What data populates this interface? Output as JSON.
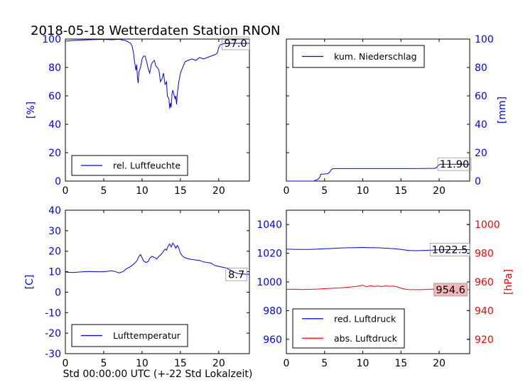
{
  "figure": {
    "title": "2018-05-18 Wetterdaten Station RNON",
    "xlabel": "Std 00:00:00 UTC (+-22 Std Lokalzeit)"
  },
  "colors": {
    "blue": "#0000ff",
    "red": "#ff0000",
    "black": "#000000"
  },
  "chart_data": [
    {
      "id": "humidity",
      "type": "line",
      "xlim": [
        0,
        24
      ],
      "ylim": [
        0,
        100
      ],
      "xticks": [
        0,
        5,
        10,
        15,
        20
      ],
      "yticks": [
        0,
        20,
        40,
        60,
        80,
        100
      ],
      "ylabel": "[%]",
      "ylabel_color": "#0000ff",
      "tick_color": "#0000ff",
      "legend_position": "lower-center",
      "series": [
        {
          "name": "rel. Luftfeuchte",
          "color": "#0000ff",
          "points": [
            [
              0,
              98.5
            ],
            [
              1,
              99
            ],
            [
              2,
              99.3
            ],
            [
              3,
              99.5
            ],
            [
              4,
              99.6
            ],
            [
              5,
              99.8
            ],
            [
              6,
              99.5
            ],
            [
              7,
              99.8
            ],
            [
              7.8,
              99
            ],
            [
              8.2,
              98
            ],
            [
              8.5,
              97
            ],
            [
              8.7,
              95
            ],
            [
              8.9,
              90
            ],
            [
              9.0,
              85
            ],
            [
              9.2,
              78
            ],
            [
              9.3,
              82
            ],
            [
              9.4,
              73
            ],
            [
              9.5,
              69
            ],
            [
              9.6,
              77
            ],
            [
              9.8,
              80
            ],
            [
              10.0,
              86
            ],
            [
              10.2,
              88
            ],
            [
              10.4,
              88
            ],
            [
              10.6,
              84
            ],
            [
              10.8,
              79
            ],
            [
              11.0,
              76
            ],
            [
              11.2,
              82
            ],
            [
              11.4,
              84
            ],
            [
              11.6,
              85
            ],
            [
              11.8,
              81
            ],
            [
              12.0,
              80
            ],
            [
              12.2,
              78
            ],
            [
              12.4,
              70
            ],
            [
              12.6,
              72
            ],
            [
              12.8,
              76
            ],
            [
              13.0,
              68
            ],
            [
              13.2,
              70
            ],
            [
              13.3,
              60
            ],
            [
              13.5,
              58
            ],
            [
              13.6,
              51
            ],
            [
              13.7,
              55
            ],
            [
              13.8,
              52
            ],
            [
              13.9,
              61
            ],
            [
              14.0,
              64
            ],
            [
              14.1,
              62
            ],
            [
              14.3,
              58
            ],
            [
              14.4,
              60
            ],
            [
              14.5,
              54
            ],
            [
              14.6,
              62
            ],
            [
              14.8,
              70
            ],
            [
              15.0,
              76
            ],
            [
              15.3,
              80
            ],
            [
              15.6,
              84
            ],
            [
              16.0,
              85
            ],
            [
              16.5,
              86
            ],
            [
              17,
              85
            ],
            [
              17.5,
              87
            ],
            [
              18,
              86
            ],
            [
              18.5,
              87
            ],
            [
              19,
              88
            ],
            [
              19.5,
              89
            ],
            [
              19.8,
              90
            ],
            [
              20.0,
              94
            ],
            [
              20.2,
              96
            ],
            [
              20.5,
              96.5
            ],
            [
              21,
              97
            ],
            [
              22,
              97
            ],
            [
              23,
              97
            ],
            [
              24,
              97
            ]
          ]
        }
      ],
      "annotations": [
        {
          "text": "97.0",
          "x": 22.2,
          "y": 97
        }
      ]
    },
    {
      "id": "precipitation",
      "type": "line",
      "xlim": [
        0,
        24
      ],
      "ylim": [
        0,
        100
      ],
      "xticks": [
        0,
        5,
        10,
        15,
        20
      ],
      "yticks": [
        0,
        20,
        40,
        60,
        80,
        100
      ],
      "y_axis_side": "right",
      "ylabel": "[mm]",
      "ylabel_color": "#0000ff",
      "tick_color": "#0000ff",
      "legend_position": "upper-left",
      "series": [
        {
          "name": "kum. Niederschlag",
          "color": "#0000ff",
          "points": [
            [
              0,
              0
            ],
            [
              3.6,
              0
            ],
            [
              3.7,
              0.3
            ],
            [
              3.8,
              0.6
            ],
            [
              4.0,
              1.0
            ],
            [
              4.2,
              1.5
            ],
            [
              4.4,
              3
            ],
            [
              4.5,
              4.8
            ],
            [
              5.0,
              5
            ],
            [
              5.4,
              5.2
            ],
            [
              5.6,
              6
            ],
            [
              5.8,
              7.5
            ],
            [
              6.0,
              8.6
            ],
            [
              6.3,
              8.8
            ],
            [
              8,
              8.8
            ],
            [
              10,
              8.8
            ],
            [
              12,
              8.8
            ],
            [
              14,
              8.8
            ],
            [
              16,
              8.8
            ],
            [
              18,
              8.9
            ],
            [
              19.4,
              9.0
            ],
            [
              19.6,
              9.3
            ],
            [
              19.8,
              10.6
            ],
            [
              20.0,
              11.5
            ],
            [
              20.3,
              11.9
            ],
            [
              24,
              11.9
            ]
          ]
        }
      ],
      "annotations": [
        {
          "text": "11.90",
          "x": 22.0,
          "y": 11.9
        }
      ]
    },
    {
      "id": "temperature",
      "type": "line",
      "xlim": [
        0,
        24
      ],
      "ylim": [
        -30,
        40
      ],
      "xticks": [
        0,
        5,
        10,
        15,
        20
      ],
      "yticks": [
        -30,
        -20,
        -10,
        0,
        10,
        20,
        30,
        40
      ],
      "ylabel": "[C]",
      "ylabel_color": "#0000ff",
      "tick_color": "#0000ff",
      "legend_position": "lower-center",
      "series": [
        {
          "name": "Lufttemperatur",
          "color": "#0000ff",
          "points": [
            [
              0,
              9.8
            ],
            [
              1,
              9.6
            ],
            [
              2,
              9.9
            ],
            [
              3,
              10.1
            ],
            [
              4,
              10.0
            ],
            [
              5,
              10.0
            ],
            [
              6,
              10.4
            ],
            [
              6.5,
              10.1
            ],
            [
              7,
              9.4
            ],
            [
              7.5,
              10.0
            ],
            [
              8.0,
              11.5
            ],
            [
              8.5,
              12.5
            ],
            [
              9.0,
              14.0
            ],
            [
              9.3,
              15.2
            ],
            [
              9.6,
              17.5
            ],
            [
              9.8,
              18.3
            ],
            [
              10.0,
              16.8
            ],
            [
              10.2,
              15.2
            ],
            [
              10.5,
              14.5
            ],
            [
              10.8,
              15.0
            ],
            [
              11.0,
              16.5
            ],
            [
              11.3,
              17.5
            ],
            [
              11.6,
              17.0
            ],
            [
              11.9,
              16.2
            ],
            [
              12.2,
              17.5
            ],
            [
              12.5,
              18.5
            ],
            [
              12.8,
              20.0
            ],
            [
              13.0,
              21.0
            ],
            [
              13.2,
              20.5
            ],
            [
              13.4,
              22.5
            ],
            [
              13.6,
              23.5
            ],
            [
              13.8,
              22.0
            ],
            [
              14.0,
              24.0
            ],
            [
              14.2,
              23.0
            ],
            [
              14.4,
              21.5
            ],
            [
              14.6,
              22.8
            ],
            [
              14.8,
              21.5
            ],
            [
              15.0,
              19.0
            ],
            [
              15.3,
              17.5
            ],
            [
              15.6,
              16.8
            ],
            [
              16.0,
              16.3
            ],
            [
              16.5,
              15.9
            ],
            [
              17,
              15.7
            ],
            [
              17.5,
              15.5
            ],
            [
              18,
              14.8
            ],
            [
              18.5,
              14.5
            ],
            [
              19,
              14.2
            ],
            [
              19.5,
              13.0
            ],
            [
              20,
              12.6
            ],
            [
              20.5,
              12.2
            ],
            [
              21,
              11.8
            ],
            [
              21.5,
              10.8
            ],
            [
              22,
              9.8
            ],
            [
              22.5,
              9.1
            ],
            [
              23,
              8.9
            ],
            [
              24,
              8.7
            ]
          ]
        }
      ],
      "annotations": [
        {
          "text": "8.7",
          "x": 22.3,
          "y": 8.7
        }
      ]
    },
    {
      "id": "pressure",
      "type": "line",
      "xlim": [
        0,
        24
      ],
      "ylim_left": [
        950,
        1050
      ],
      "ylim_right": [
        910,
        1010
      ],
      "xticks": [
        0,
        5,
        10,
        15,
        20
      ],
      "yticks_left": [
        960,
        980,
        1000,
        1020,
        1040
      ],
      "yticks_right": [
        920,
        940,
        960,
        980,
        1000
      ],
      "ylabel_right": "[hPa]",
      "ylabel_right_color": "#ff0000",
      "tick_color_left": "#0000ff",
      "tick_color_right": "#ff0000",
      "legend_position": "lower-left",
      "series": [
        {
          "name": "red. Luftdruck",
          "color": "#0000ff",
          "axis": "left",
          "points": [
            [
              0,
              1022.8
            ],
            [
              1,
              1022.7
            ],
            [
              2,
              1022.6
            ],
            [
              3,
              1022.6
            ],
            [
              4,
              1022.8
            ],
            [
              5,
              1023.1
            ],
            [
              6,
              1023.3
            ],
            [
              7,
              1023.6
            ],
            [
              8,
              1023.8
            ],
            [
              9,
              1023.9
            ],
            [
              10,
              1024.0
            ],
            [
              11,
              1023.9
            ],
            [
              12,
              1023.8
            ],
            [
              13,
              1023.5
            ],
            [
              14,
              1023.2
            ],
            [
              15,
              1022.6
            ],
            [
              16,
              1022.0
            ],
            [
              17,
              1021.8
            ],
            [
              18,
              1022.0
            ],
            [
              19,
              1022.2
            ],
            [
              20,
              1022.4
            ],
            [
              21,
              1022.5
            ],
            [
              22,
              1022.5
            ],
            [
              23,
              1022.5
            ],
            [
              24,
              1022.5
            ]
          ]
        },
        {
          "name": "abs. Luftdruck",
          "color": "#ff0000",
          "axis": "right",
          "points": [
            [
              0,
              954.8
            ],
            [
              1,
              954.9
            ],
            [
              2,
              954.7
            ],
            [
              3,
              954.8
            ],
            [
              4,
              955.0
            ],
            [
              5,
              955.3
            ],
            [
              6,
              955.6
            ],
            [
              7,
              955.8
            ],
            [
              8,
              956.3
            ],
            [
              9,
              956.8
            ],
            [
              9.5,
              957.2
            ],
            [
              10,
              957.7
            ],
            [
              10.5,
              956.6
            ],
            [
              11,
              957.4
            ],
            [
              11.5,
              956.9
            ],
            [
              12,
              957.2
            ],
            [
              12.5,
              956.8
            ],
            [
              13,
              957.3
            ],
            [
              13.5,
              957.0
            ],
            [
              14,
              957.2
            ],
            [
              14.5,
              956.6
            ],
            [
              15,
              955.6
            ],
            [
              15.5,
              955.0
            ],
            [
              16,
              954.7
            ],
            [
              17,
              954.6
            ],
            [
              18,
              954.7
            ],
            [
              19,
              954.9
            ],
            [
              20,
              955.0
            ],
            [
              21,
              954.8
            ],
            [
              22,
              954.7
            ],
            [
              23,
              954.6
            ],
            [
              24,
              954.6
            ]
          ]
        }
      ],
      "annotations": [
        {
          "text": "1022.5",
          "x": 21.4,
          "y": 1022.5,
          "axis": "left"
        },
        {
          "text": "954.6",
          "x": 21.5,
          "y": 954.6,
          "axis": "right",
          "highlight": "#f4b6b6"
        }
      ]
    }
  ]
}
